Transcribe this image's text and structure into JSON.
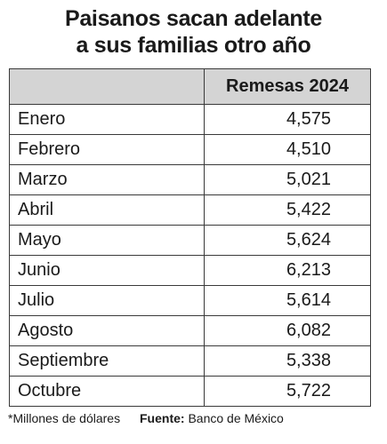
{
  "chart_data": {
    "type": "table",
    "title_lines": [
      "Paisanos sacan adelante",
      "a sus familias otro año"
    ],
    "columns": [
      "",
      "Remesas 2024"
    ],
    "categories": [
      "Enero",
      "Febrero",
      "Marzo",
      "Abril",
      "Mayo",
      "Junio",
      "Julio",
      "Agosto",
      "Septiembre",
      "Octubre"
    ],
    "series": [
      {
        "name": "Remesas 2024",
        "values": [
          4575,
          4510,
          5021,
          5422,
          5624,
          6213,
          5614,
          6082,
          5338,
          5722
        ],
        "display": [
          "4,575",
          "4,510",
          "5,021",
          "5,422",
          "5,624",
          "6,213",
          "5,614",
          "6,082",
          "5,338",
          "5,722"
        ]
      }
    ],
    "header_fill": "#d4d4d4",
    "grid": true
  },
  "footer": {
    "note": "*Millones de dólares",
    "source_label": "Fuente:",
    "source_value": "Banco de México"
  }
}
